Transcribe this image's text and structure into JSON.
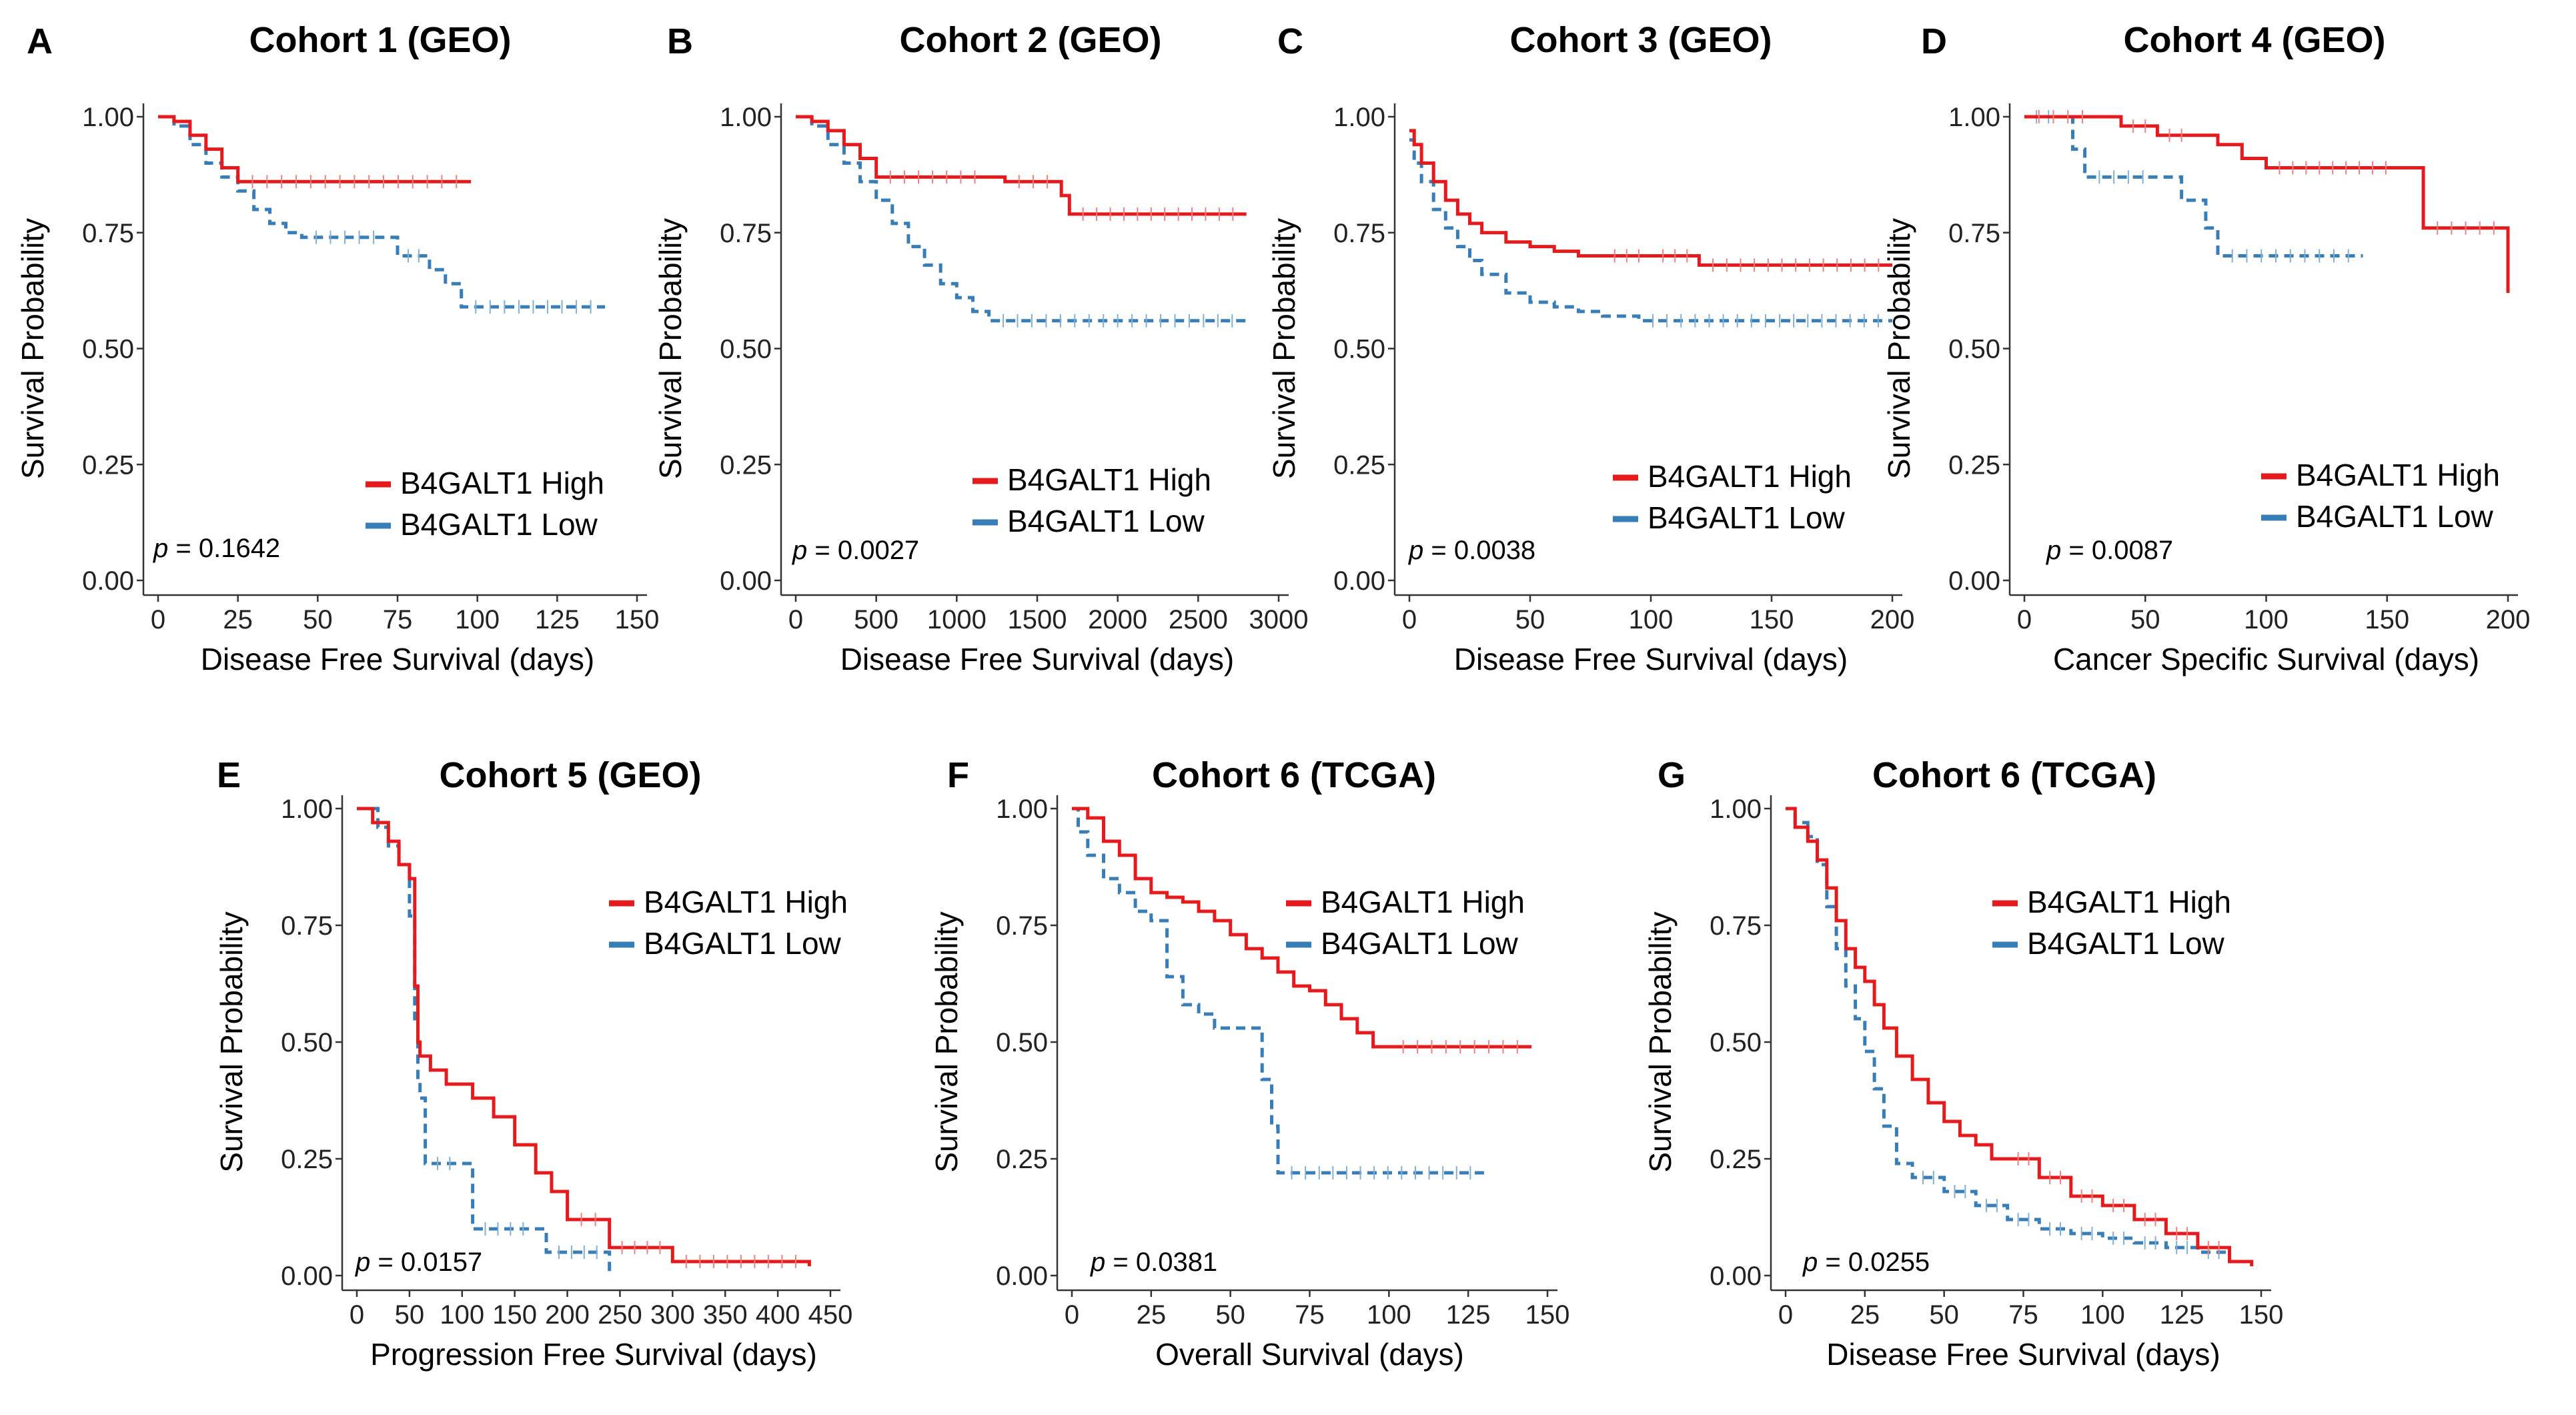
{
  "colors": {
    "high": "#e41a1c",
    "low": "#377eb8"
  },
  "legend": {
    "high_label": "B4GALT1 High",
    "low_label": "B4GALT1 Low"
  },
  "p_prefix": "p",
  "chart_data": [
    {
      "id": "A",
      "type": "line",
      "title": "Cohort 1 (GEO)",
      "xlabel": "Disease Free Survival (days)",
      "ylabel": "Survival Probability",
      "xlim": [
        0,
        150
      ],
      "ylim": [
        0,
        1
      ],
      "xticks": [
        0,
        25,
        50,
        75,
        100,
        125,
        150
      ],
      "yticks": [
        "0.00",
        "0.25",
        "0.50",
        "0.75",
        "1.00"
      ],
      "p_value": "= 0.1642",
      "legend_position": "bottom-right",
      "series": [
        {
          "name": "B4GALT1 High",
          "x": [
            0,
            5,
            10,
            15,
            20,
            25,
            98
          ],
          "y": [
            1.0,
            0.99,
            0.96,
            0.93,
            0.89,
            0.86,
            0.86
          ]
        },
        {
          "name": "B4GALT1 Low",
          "x": [
            0,
            5,
            10,
            15,
            20,
            25,
            30,
            35,
            40,
            45,
            72,
            75,
            85,
            90,
            95,
            140
          ],
          "y": [
            1.0,
            0.98,
            0.94,
            0.9,
            0.87,
            0.84,
            0.8,
            0.77,
            0.75,
            0.74,
            0.74,
            0.7,
            0.67,
            0.64,
            0.59,
            0.59
          ]
        }
      ]
    },
    {
      "id": "B",
      "type": "line",
      "title": "Cohort 2 (GEO)",
      "xlabel": "Disease Free Survival (days)",
      "ylabel": "Survival Probability",
      "xlim": [
        0,
        3000
      ],
      "ylim": [
        0,
        1
      ],
      "xticks": [
        0,
        500,
        1000,
        1500,
        2000,
        2500,
        3000
      ],
      "yticks": [
        "0.00",
        "0.25",
        "0.50",
        "0.75",
        "1.00"
      ],
      "p_value": "= 0.0027",
      "legend_position": "bottom-right",
      "series": [
        {
          "name": "B4GALT1 High",
          "x": [
            0,
            100,
            200,
            300,
            400,
            500,
            1200,
            1300,
            1650,
            1700,
            2800
          ],
          "y": [
            1.0,
            0.99,
            0.97,
            0.94,
            0.91,
            0.87,
            0.87,
            0.86,
            0.83,
            0.79,
            0.79
          ]
        },
        {
          "name": "B4GALT1 Low",
          "x": [
            0,
            100,
            200,
            300,
            400,
            500,
            600,
            700,
            800,
            900,
            1000,
            1100,
            1200,
            2800
          ],
          "y": [
            1.0,
            0.98,
            0.94,
            0.9,
            0.86,
            0.82,
            0.77,
            0.72,
            0.68,
            0.64,
            0.61,
            0.58,
            0.56,
            0.56
          ]
        }
      ]
    },
    {
      "id": "C",
      "type": "line",
      "title": "Cohort 3 (GEO)",
      "xlabel": "Disease Free Survival (days)",
      "ylabel": "Survival Probability",
      "xlim": [
        0,
        200
      ],
      "ylim": [
        0,
        1
      ],
      "xticks": [
        0,
        50,
        100,
        150,
        200
      ],
      "yticks": [
        "0.00",
        "0.25",
        "0.50",
        "0.75",
        "1.00"
      ],
      "p_value": "= 0.0038",
      "legend_position": "bottom-right",
      "series": [
        {
          "name": "B4GALT1 High",
          "x": [
            0,
            2,
            5,
            10,
            15,
            20,
            25,
            30,
            40,
            50,
            60,
            70,
            80,
            100,
            120,
            200
          ],
          "y": [
            0.97,
            0.94,
            0.9,
            0.86,
            0.82,
            0.79,
            0.77,
            0.75,
            0.73,
            0.72,
            0.71,
            0.7,
            0.7,
            0.7,
            0.68,
            0.68
          ]
        },
        {
          "name": "B4GALT1 Low",
          "x": [
            0,
            2,
            5,
            10,
            15,
            20,
            25,
            30,
            40,
            50,
            60,
            70,
            80,
            90,
            95,
            200
          ],
          "y": [
            0.95,
            0.9,
            0.86,
            0.8,
            0.76,
            0.72,
            0.69,
            0.66,
            0.62,
            0.6,
            0.59,
            0.58,
            0.57,
            0.57,
            0.56,
            0.56
          ]
        }
      ]
    },
    {
      "id": "D",
      "type": "line",
      "title": "Cohort 4 (GEO)",
      "xlabel": "Cancer Specific Survival (days)",
      "ylabel": "Survival Probability",
      "xlim": [
        0,
        200
      ],
      "ylim": [
        0,
        1
      ],
      "xticks": [
        0,
        50,
        100,
        150,
        200
      ],
      "yticks": [
        "0.00",
        "0.25",
        "0.50",
        "0.75",
        "1.00"
      ],
      "p_value": "= 0.0087",
      "legend_position": "bottom-right",
      "series": [
        {
          "name": "B4GALT1 High",
          "x": [
            0,
            30,
            40,
            55,
            70,
            80,
            90,
            100,
            155,
            165,
            200
          ],
          "y": [
            1.0,
            1.0,
            0.98,
            0.96,
            0.96,
            0.94,
            0.91,
            0.89,
            0.89,
            0.76,
            0.62
          ]
        },
        {
          "name": "B4GALT1 Low",
          "x": [
            0,
            15,
            20,
            25,
            55,
            65,
            75,
            80,
            140
          ],
          "y": [
            1.0,
            1.0,
            0.93,
            0.87,
            0.87,
            0.82,
            0.76,
            0.7,
            0.7
          ]
        }
      ]
    },
    {
      "id": "E",
      "type": "line",
      "title": "Cohort 5 (GEO)",
      "xlabel": "Progression Free Survival (days)",
      "ylabel": "Survival Probability",
      "xlim": [
        0,
        450
      ],
      "ylim": [
        0,
        1
      ],
      "xticks": [
        0,
        50,
        100,
        150,
        200,
        250,
        300,
        350,
        400,
        450
      ],
      "yticks": [
        "0.00",
        "0.25",
        "0.50",
        "0.75",
        "1.00"
      ],
      "p_value": "= 0.0157",
      "legend_position": "top-right",
      "series": [
        {
          "name": "B4GALT1 High",
          "x": [
            0,
            15,
            30,
            40,
            50,
            55,
            58,
            60,
            70,
            85,
            110,
            130,
            150,
            170,
            185,
            200,
            240,
            300,
            430
          ],
          "y": [
            1.0,
            0.97,
            0.93,
            0.88,
            0.85,
            0.62,
            0.5,
            0.47,
            0.44,
            0.41,
            0.38,
            0.34,
            0.28,
            0.22,
            0.18,
            0.12,
            0.06,
            0.03,
            0.02
          ]
        },
        {
          "name": "B4GALT1 Low",
          "x": [
            0,
            20,
            30,
            40,
            50,
            55,
            58,
            60,
            65,
            100,
            110,
            170,
            180,
            240
          ],
          "y": [
            1.0,
            0.96,
            0.92,
            0.88,
            0.77,
            0.55,
            0.42,
            0.38,
            0.24,
            0.24,
            0.1,
            0.1,
            0.05,
            0.0
          ]
        }
      ]
    },
    {
      "id": "F",
      "type": "line",
      "title": "Cohort 6 (TCGA)",
      "xlabel": "Overall Survival (days)",
      "ylabel": "Survival Probability",
      "xlim": [
        0,
        150
      ],
      "ylim": [
        0,
        1
      ],
      "xticks": [
        0,
        25,
        50,
        75,
        100,
        125,
        150
      ],
      "yticks": [
        "0.00",
        "0.25",
        "0.50",
        "0.75",
        "1.00"
      ],
      "p_value": "= 0.0381",
      "legend_position": "top-right",
      "series": [
        {
          "name": "B4GALT1 High",
          "x": [
            0,
            5,
            10,
            15,
            20,
            25,
            30,
            35,
            40,
            45,
            50,
            55,
            60,
            65,
            70,
            75,
            80,
            85,
            90,
            95,
            100,
            145
          ],
          "y": [
            1.0,
            0.98,
            0.93,
            0.9,
            0.85,
            0.82,
            0.81,
            0.8,
            0.78,
            0.76,
            0.73,
            0.7,
            0.68,
            0.65,
            0.62,
            0.61,
            0.58,
            0.55,
            0.52,
            0.49,
            0.49,
            0.49
          ]
        },
        {
          "name": "B4GALT1 Low",
          "x": [
            0,
            2,
            5,
            10,
            15,
            20,
            25,
            30,
            35,
            40,
            45,
            50,
            55,
            60,
            63,
            65,
            130
          ],
          "y": [
            1.0,
            0.95,
            0.9,
            0.85,
            0.82,
            0.78,
            0.76,
            0.64,
            0.58,
            0.56,
            0.53,
            0.53,
            0.53,
            0.42,
            0.32,
            0.22,
            0.22
          ]
        }
      ]
    },
    {
      "id": "G",
      "type": "line",
      "title": "Cohort 6 (TCGA)",
      "xlabel": "Disease Free Survival (days)",
      "ylabel": "Survival Probability",
      "xlim": [
        0,
        150
      ],
      "ylim": [
        0,
        1
      ],
      "xticks": [
        0,
        25,
        50,
        75,
        100,
        125,
        150
      ],
      "yticks": [
        "0.00",
        "0.25",
        "0.50",
        "0.75",
        "1.00"
      ],
      "p_value": "= 0.0255",
      "legend_position": "top-center",
      "series": [
        {
          "name": "B4GALT1 High",
          "x": [
            0,
            3,
            7,
            10,
            13,
            16,
            19,
            22,
            25,
            28,
            31,
            35,
            40,
            45,
            50,
            55,
            60,
            65,
            70,
            80,
            90,
            100,
            110,
            120,
            130,
            140,
            147
          ],
          "y": [
            1.0,
            0.96,
            0.93,
            0.89,
            0.83,
            0.76,
            0.7,
            0.66,
            0.63,
            0.58,
            0.53,
            0.47,
            0.42,
            0.37,
            0.33,
            0.3,
            0.28,
            0.25,
            0.25,
            0.21,
            0.17,
            0.15,
            0.12,
            0.09,
            0.06,
            0.03,
            0.02
          ]
        },
        {
          "name": "B4GALT1 Low",
          "x": [
            0,
            3,
            7,
            10,
            13,
            16,
            19,
            22,
            25,
            28,
            31,
            35,
            40,
            50,
            60,
            70,
            80,
            90,
            100,
            110,
            120,
            130,
            140
          ],
          "y": [
            1.0,
            0.97,
            0.94,
            0.88,
            0.79,
            0.7,
            0.62,
            0.55,
            0.48,
            0.4,
            0.32,
            0.24,
            0.21,
            0.18,
            0.15,
            0.12,
            0.1,
            0.09,
            0.08,
            0.07,
            0.06,
            0.05,
            0.03
          ]
        }
      ]
    }
  ]
}
